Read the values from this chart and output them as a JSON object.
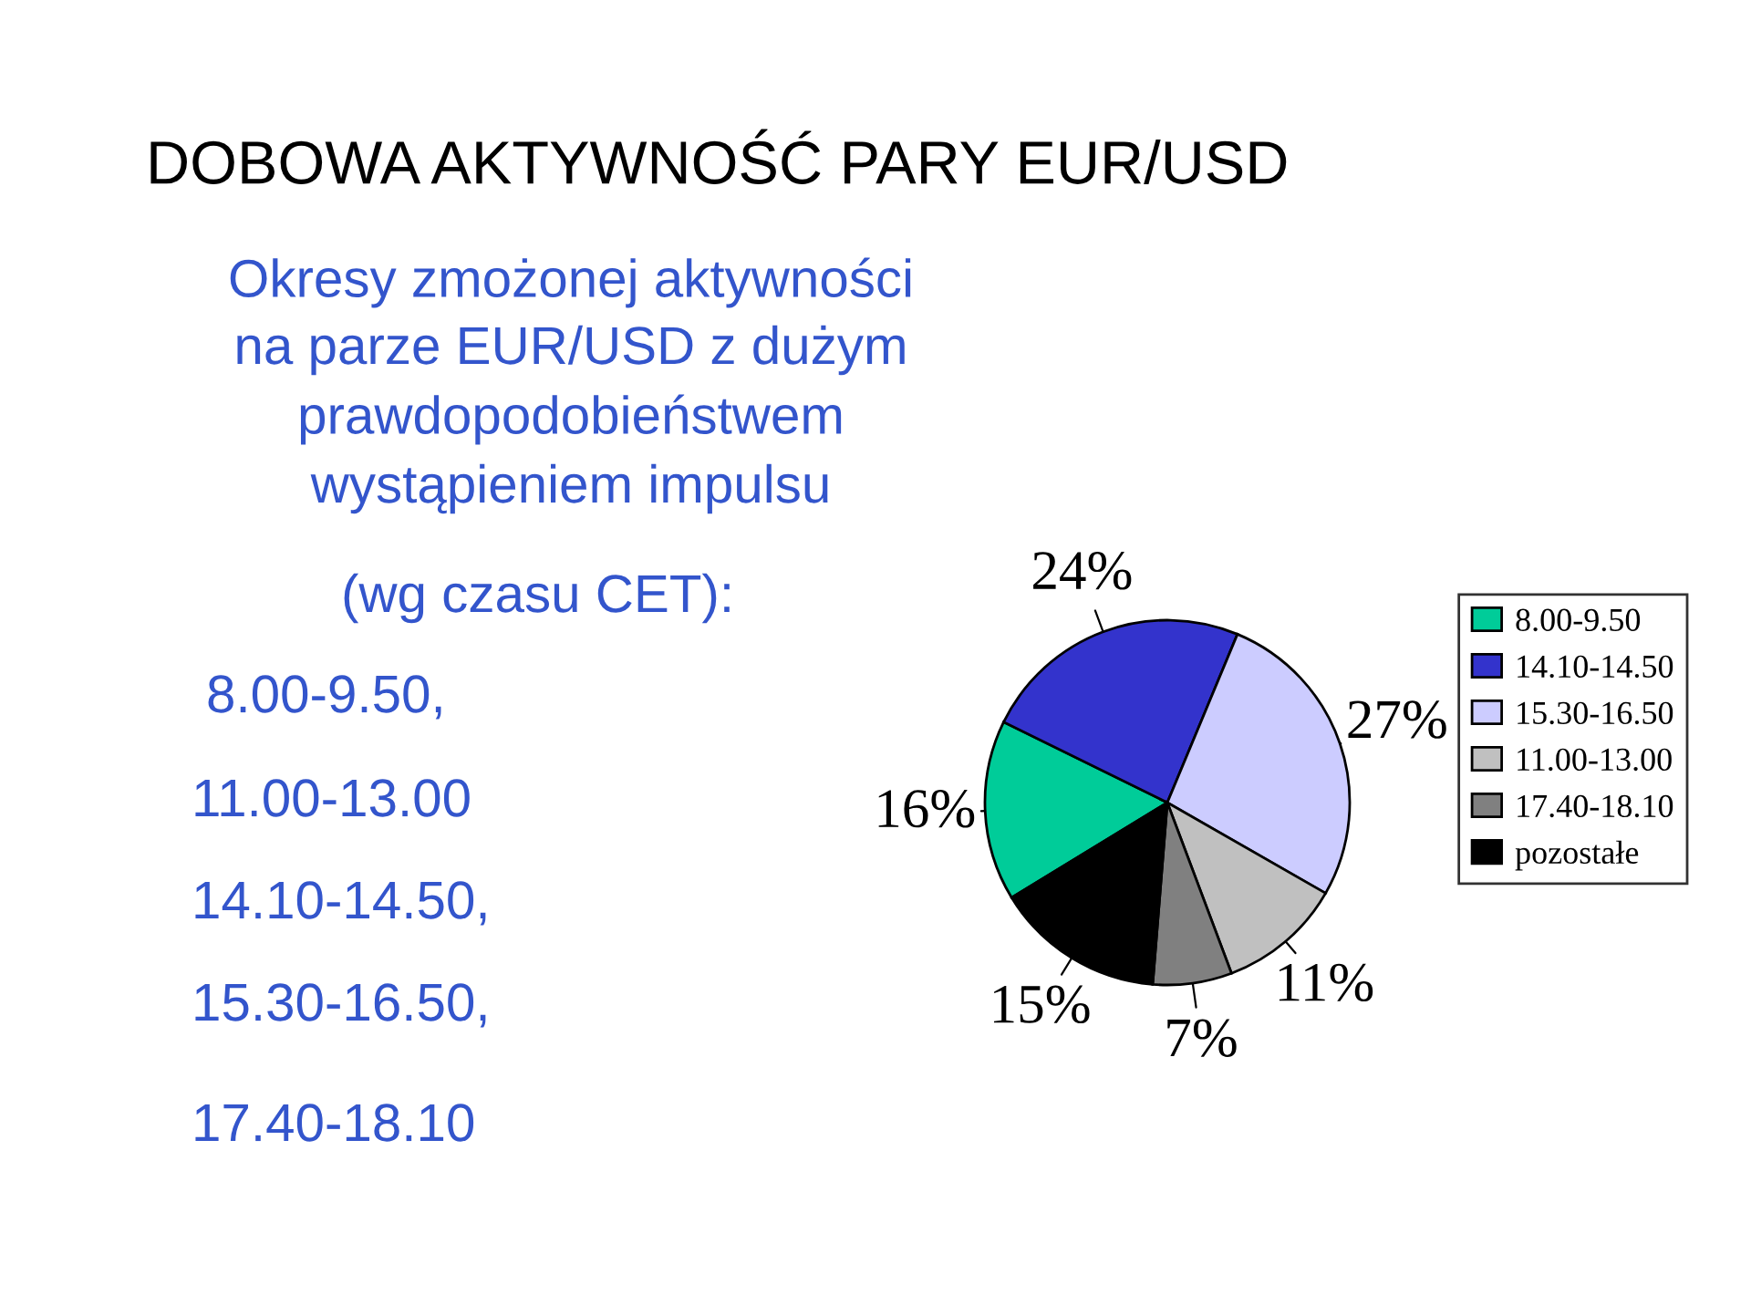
{
  "chart_data": {
    "type": "pie",
    "title": "DOBOWA AKTYWNOŚĆ PARY EUR/USD",
    "categories": [
      "8.00-9.50",
      "14.10-14.50",
      "15.30-16.50",
      "11.00-13.00",
      "17.40-18.10",
      "pozostałe"
    ],
    "values": [
      16,
      24,
      27,
      11,
      7,
      15
    ],
    "colors": [
      "#00cc99",
      "#3333cc",
      "#ccccff",
      "#c0c0c0",
      "#808080",
      "#000000"
    ],
    "value_labels": [
      "16%",
      "24%",
      "27%",
      "11%",
      "7%",
      "15%"
    ],
    "legend": "right",
    "annotations": [
      "Okresy zmożonej aktywności",
      "na parze EUR/USD z dużym",
      "prawdopodobieństwem",
      "wystąpieniem impulsu",
      "(wg czasu CET):",
      "8.00-9.50,",
      "11.00-13.00",
      "14.10-14.50,",
      "15.30-16.50,",
      "17.40-18.10"
    ]
  }
}
